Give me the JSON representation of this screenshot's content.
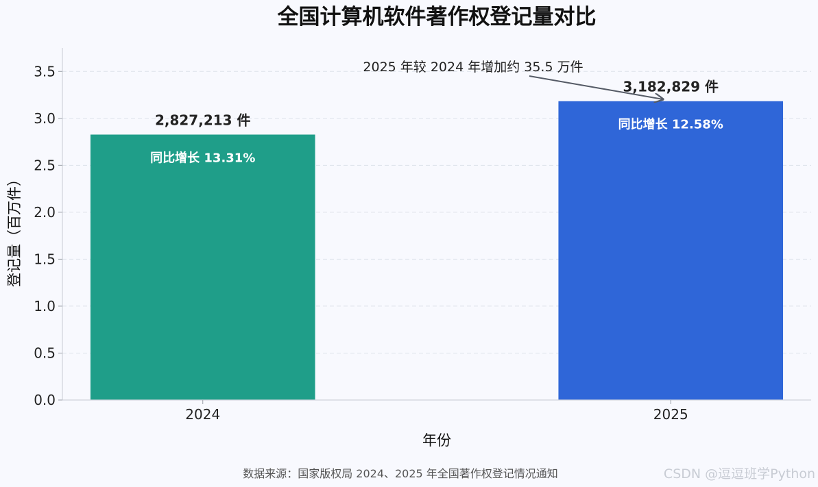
{
  "chart_data": {
    "type": "bar",
    "title": "全国计算机软件著作权登记量对比",
    "xlabel": "年份",
    "ylabel": "登记量（百万件）",
    "categories": [
      "2024",
      "2025"
    ],
    "values": [
      2.827213,
      3.182829
    ],
    "ylim": [
      0,
      3.75
    ],
    "yticks": [
      "0.0",
      "0.5",
      "1.0",
      "1.5",
      "2.0",
      "2.5",
      "3.0",
      "3.5"
    ],
    "grid": "horizontal-dashed",
    "bar_colors": [
      "#1f9e89",
      "#2f66d8"
    ],
    "value_labels": [
      "2,827,213 件",
      "3,182,829 件"
    ],
    "inner_labels": [
      "同比增长 13.31%",
      "同比增长 12.58%"
    ],
    "annotation": "2025 年较 2024 年增加约 35.5 万件",
    "source": "数据来源：国家版权局 2024、2025 年全国著作权登记情况通知"
  },
  "watermark": "CSDN @逗逗班学Python"
}
